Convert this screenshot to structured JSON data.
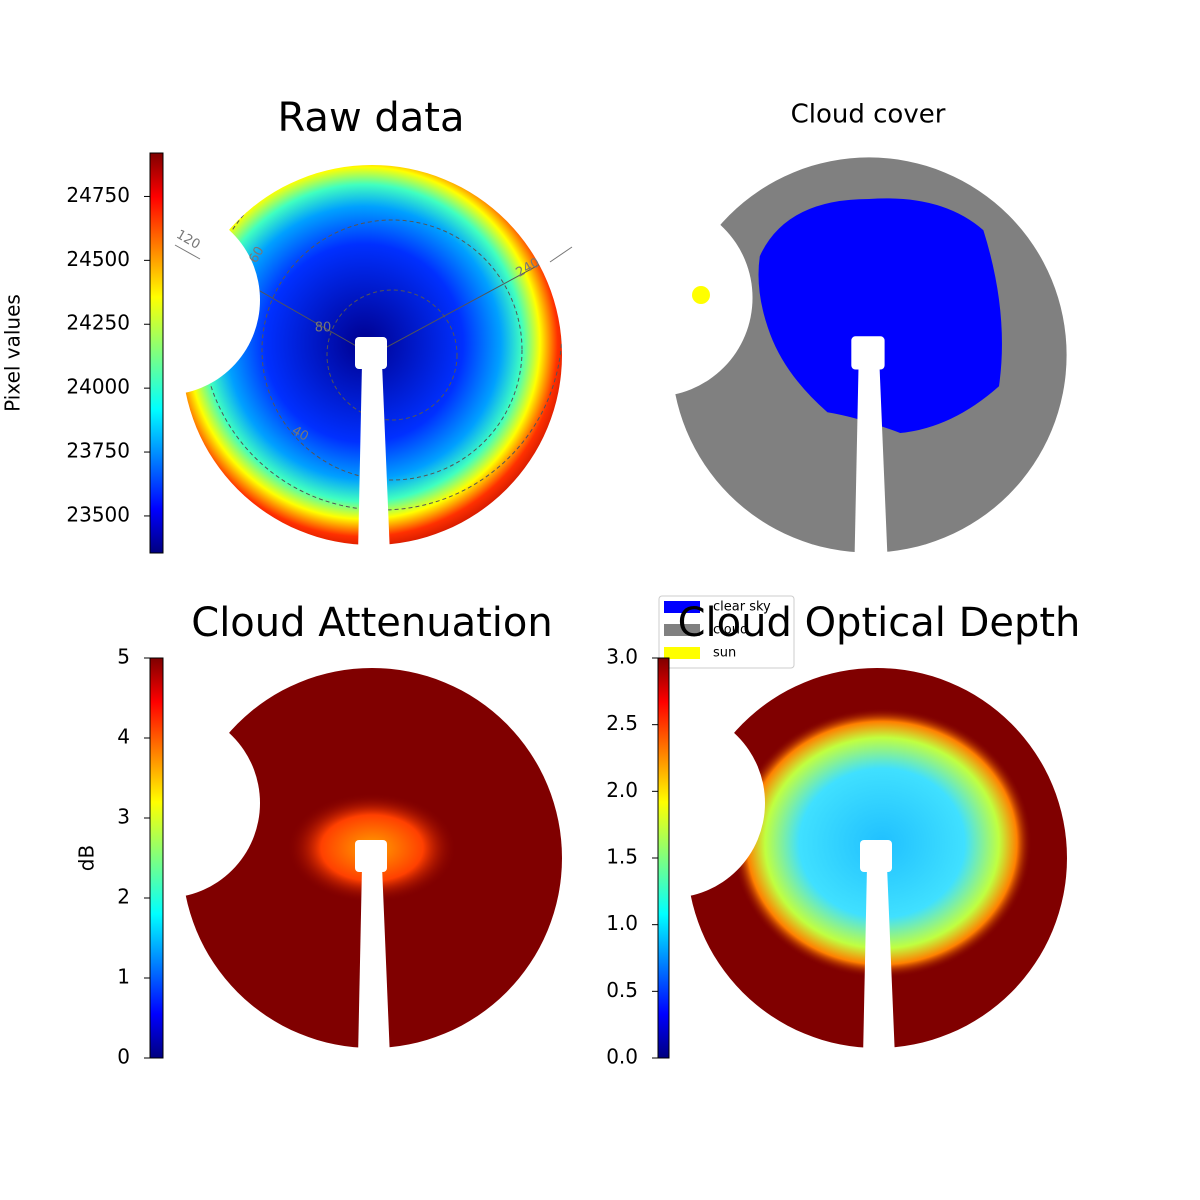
{
  "chart_data": [
    {
      "type": "image",
      "title": "Raw data",
      "colormap": "jet",
      "ylabel": "Pixel values",
      "ylim": [
        23355,
        24920
      ],
      "yticks": [
        23500,
        23750,
        24000,
        24250,
        24500,
        24750
      ],
      "annotations": [
        "120",
        "60",
        "240",
        "40",
        "80"
      ]
    },
    {
      "type": "classes",
      "title": "Cloud cover",
      "series": [
        {
          "name": "clear sky",
          "color": "#0000ff"
        },
        {
          "name": "cloud",
          "color": "#808080"
        },
        {
          "name": "sun",
          "color": "#ffff00"
        }
      ]
    },
    {
      "type": "image",
      "title": "Cloud Attenuation",
      "colormap": "jet",
      "ylabel": "dB",
      "ylim": [
        0,
        5
      ],
      "yticks": [
        0,
        1,
        2,
        3,
        4,
        5
      ]
    },
    {
      "type": "image",
      "title": "Cloud Optical Depth",
      "colormap": "jet",
      "ylim": [
        0,
        3
      ],
      "yticks": [
        {
          "value": 0,
          "label": "0.0"
        },
        {
          "value": 0.5,
          "label": "0.5"
        },
        {
          "value": 1,
          "label": "1.0"
        },
        {
          "value": 1.5,
          "label": "1.5"
        },
        {
          "value": 2,
          "label": "2.0"
        },
        {
          "value": 2.5,
          "label": "2.5"
        },
        {
          "value": 3,
          "label": "3.0"
        }
      ]
    }
  ]
}
